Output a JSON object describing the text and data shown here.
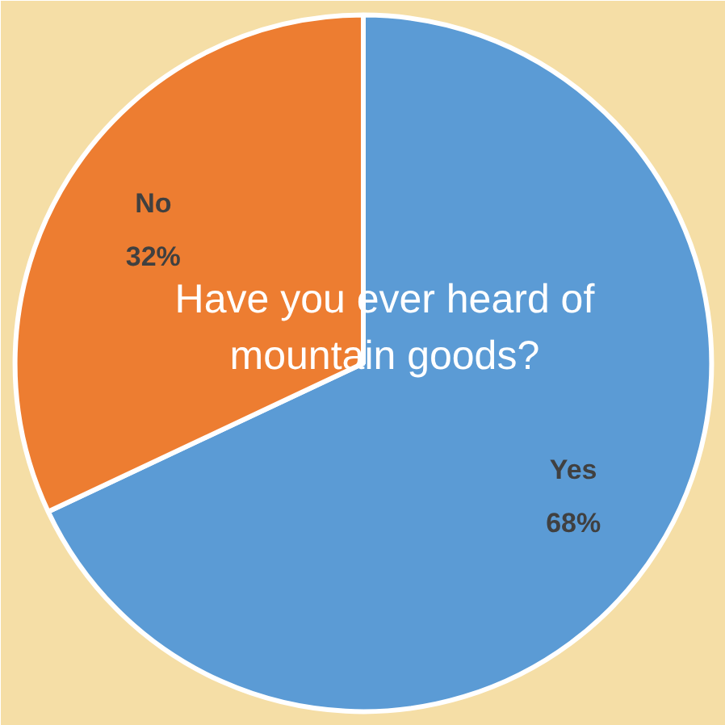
{
  "chart_data": {
    "type": "pie",
    "title": "Have you ever heard of\nmountain goods?",
    "categories": [
      "Yes",
      "No"
    ],
    "values": [
      68,
      32
    ],
    "colors": [
      "#5b9bd5",
      "#ed7d31"
    ],
    "value_labels": [
      "68%",
      "32%"
    ]
  }
}
